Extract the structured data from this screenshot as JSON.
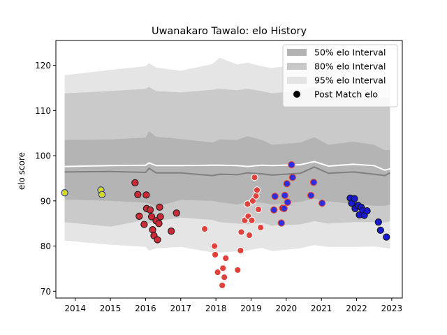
{
  "chart_data": {
    "type": "scatter",
    "title": "Uwanakaro Tawalo: elo History",
    "xlabel": "",
    "ylabel": "elo score",
    "xlim": [
      2013.45,
      2023.3
    ],
    "ylim": [
      68.5,
      125.5
    ],
    "xticks": [
      2014,
      2015,
      2016,
      2017,
      2018,
      2019,
      2020,
      2021,
      2022,
      2023
    ],
    "yticks": [
      70,
      80,
      90,
      100,
      110,
      120
    ],
    "legend_position": "top-right",
    "legend": [
      {
        "label": "50% elo Interval",
        "kind": "band",
        "color": "#b3b3b3"
      },
      {
        "label": "80% elo Interval",
        "kind": "band",
        "color": "#c8c8c8"
      },
      {
        "label": "95% elo Interval",
        "kind": "band",
        "color": "#e4e4e4"
      },
      {
        "label": "Post Match elo",
        "kind": "marker",
        "color": "#000000"
      }
    ],
    "bands": {
      "x": [
        2013.7,
        2015.0,
        2016.0,
        2016.1,
        2016.3,
        2017.0,
        2017.9,
        2018.1,
        2018.6,
        2018.9,
        2019.3,
        2019.6,
        2020.4,
        2020.8,
        2021.2,
        2021.9,
        2022.5,
        2022.8,
        2022.95
      ],
      "q95_upper": [
        117.8,
        119.0,
        119.8,
        120.5,
        119.5,
        118.8,
        120.3,
        121.7,
        120.2,
        120.6,
        119.8,
        119.4,
        120.3,
        122.4,
        119.0,
        119.2,
        118.0,
        116.8,
        117.0
      ],
      "q80_upper": [
        113.8,
        114.3,
        114.8,
        115.2,
        114.3,
        114.0,
        114.6,
        114.8,
        114.5,
        114.8,
        114.3,
        113.8,
        114.4,
        115.3,
        113.3,
        112.8,
        112.8,
        112.8,
        112.8
      ],
      "q50_upper": [
        103.5,
        103.6,
        104.0,
        105.4,
        104.2,
        103.7,
        102.9,
        103.6,
        103.5,
        104.3,
        103.5,
        102.4,
        102.9,
        104.1,
        102.4,
        103.1,
        102.4,
        101.2,
        101.3
      ],
      "q50_lower": [
        90.3,
        90.0,
        89.6,
        89.4,
        88.7,
        90.2,
        90.0,
        89.7,
        89.2,
        89.7,
        89.6,
        89.2,
        89.8,
        90.5,
        89.9,
        89.3,
        88.9,
        88.9,
        89.2
      ],
      "q80_lower": [
        85.3,
        84.3,
        85.8,
        85.0,
        85.5,
        86.3,
        85.8,
        85.3,
        85.0,
        84.8,
        85.2,
        84.5,
        84.8,
        85.5,
        85.0,
        85.3,
        85.3,
        85.2,
        85.5
      ],
      "q95_lower": [
        81.2,
        80.3,
        79.8,
        79.0,
        79.5,
        79.8,
        78.6,
        78.6,
        78.8,
        79.0,
        79.6,
        78.9,
        79.5,
        80.2,
        79.8,
        79.8,
        79.9,
        79.6,
        79.4
      ],
      "mean": [
        97.6,
        97.8,
        97.9,
        98.4,
        97.8,
        97.8,
        97.9,
        97.9,
        97.8,
        97.6,
        97.9,
        97.8,
        98.0,
        98.7,
        97.7,
        98.1,
        97.8,
        96.8,
        97.1
      ],
      "median": [
        96.4,
        96.5,
        96.3,
        97.2,
        96.2,
        96.2,
        95.6,
        95.9,
        95.8,
        96.2,
        96.0,
        95.7,
        96.1,
        97.5,
        96.1,
        96.4,
        95.9,
        95.6,
        96.2
      ]
    },
    "series": [
      {
        "fill": "#d7d72a",
        "edge": "#2c3c8c",
        "points": [
          [
            2013.7,
            91.8
          ],
          [
            2014.73,
            92.4
          ],
          [
            2014.76,
            91.4
          ]
        ]
      },
      {
        "fill": "#cc2a36",
        "edge": "#1e1e1e",
        "points": [
          [
            2015.7,
            94.0
          ],
          [
            2015.78,
            91.4
          ],
          [
            2015.82,
            86.6
          ],
          [
            2015.96,
            84.8
          ],
          [
            2016.02,
            91.3
          ],
          [
            2016.03,
            88.3
          ],
          [
            2016.13,
            88.0
          ],
          [
            2016.17,
            86.5
          ],
          [
            2016.2,
            83.6
          ],
          [
            2016.24,
            82.3
          ],
          [
            2016.3,
            85.6
          ],
          [
            2016.34,
            81.4
          ],
          [
            2016.38,
            85.0
          ],
          [
            2016.4,
            88.6
          ],
          [
            2016.42,
            86.5
          ],
          [
            2016.73,
            83.3
          ],
          [
            2016.88,
            87.3
          ]
        ]
      },
      {
        "fill": "#e0413b",
        "edge": "#f8f8f8",
        "points": [
          [
            2017.68,
            83.8
          ],
          [
            2017.96,
            80.0
          ],
          [
            2017.98,
            78.1
          ],
          [
            2018.05,
            74.2
          ],
          [
            2018.18,
            71.3
          ],
          [
            2018.2,
            75.1
          ],
          [
            2018.24,
            73.1
          ],
          [
            2018.28,
            77.3
          ],
          [
            2018.62,
            74.7
          ],
          [
            2018.7,
            79.0
          ],
          [
            2018.72,
            83.1
          ],
          [
            2018.82,
            85.7
          ],
          [
            2018.9,
            89.3
          ],
          [
            2018.92,
            86.6
          ],
          [
            2018.95,
            82.4
          ],
          [
            2019.02,
            85.7
          ],
          [
            2019.05,
            90.0
          ],
          [
            2019.1,
            95.2
          ],
          [
            2019.14,
            91.1
          ],
          [
            2019.17,
            92.4
          ],
          [
            2019.21,
            88.1
          ],
          [
            2019.27,
            84.1
          ]
        ]
      },
      {
        "fill": "#2e2edc",
        "edge": "#e24a33",
        "points": [
          [
            2019.65,
            88.0
          ],
          [
            2019.68,
            91.0
          ],
          [
            2019.86,
            85.1
          ],
          [
            2019.9,
            88.4
          ],
          [
            2019.94,
            88.3
          ],
          [
            2019.96,
            91.2
          ],
          [
            2020.02,
            93.8
          ],
          [
            2020.04,
            89.7
          ],
          [
            2020.15,
            98.0
          ],
          [
            2020.18,
            95.2
          ],
          [
            2020.7,
            91.2
          ],
          [
            2020.78,
            94.1
          ],
          [
            2021.02,
            89.5
          ]
        ]
      },
      {
        "fill": "#1a1ad2",
        "edge": "#141414",
        "points": [
          [
            2021.82,
            90.6
          ],
          [
            2021.86,
            89.5
          ],
          [
            2021.94,
            90.5
          ],
          [
            2021.96,
            88.3
          ],
          [
            2022.04,
            89.0
          ],
          [
            2022.08,
            86.9
          ],
          [
            2022.13,
            88.6
          ],
          [
            2022.18,
            87.9
          ],
          [
            2022.22,
            86.8
          ],
          [
            2022.3,
            87.8
          ],
          [
            2022.62,
            85.3
          ],
          [
            2022.68,
            83.5
          ],
          [
            2022.85,
            82.0
          ]
        ]
      }
    ]
  }
}
